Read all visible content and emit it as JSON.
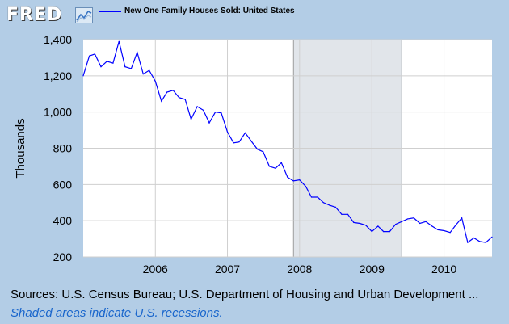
{
  "header": {
    "logo_text": "FRED",
    "logo_icon": "line-chart-icon"
  },
  "colors": {
    "background": "#b3cde6",
    "plot_background": "#ffffff",
    "series_line": "#0000ff",
    "recession_shade": "#e1e5ea",
    "note_text": "#1a66cc"
  },
  "chart_data": {
    "type": "line",
    "title": "",
    "ylabel": "Thousands",
    "xlabel": "",
    "xlim": [
      "2005-01-01",
      "2010-09-01"
    ],
    "ylim": [
      200,
      1400
    ],
    "yticks": [
      200,
      400,
      600,
      800,
      1000,
      1200,
      1400
    ],
    "ytick_labels": [
      "200",
      "400",
      "600",
      "800",
      "1,000",
      "1,200",
      "1,400"
    ],
    "xticks": [
      "2006-01-01",
      "2007-01-01",
      "2008-01-01",
      "2009-01-01",
      "2010-01-01"
    ],
    "xtick_labels": [
      "2006",
      "2007",
      "2008",
      "2009",
      "2010"
    ],
    "grid": true,
    "legend_position": "top-left",
    "recessions": [
      {
        "start": "2007-12-01",
        "end": "2009-06-01"
      }
    ],
    "series": [
      {
        "name": "New One Family Houses Sold: United States",
        "x": [
          "2005-01-01",
          "2005-02-01",
          "2005-03-01",
          "2005-04-01",
          "2005-05-01",
          "2005-06-01",
          "2005-07-01",
          "2005-08-01",
          "2005-09-01",
          "2005-10-01",
          "2005-11-01",
          "2005-12-01",
          "2006-01-01",
          "2006-02-01",
          "2006-03-01",
          "2006-04-01",
          "2006-05-01",
          "2006-06-01",
          "2006-07-01",
          "2006-08-01",
          "2006-09-01",
          "2006-10-01",
          "2006-11-01",
          "2006-12-01",
          "2007-01-01",
          "2007-02-01",
          "2007-03-01",
          "2007-04-01",
          "2007-05-01",
          "2007-06-01",
          "2007-07-01",
          "2007-08-01",
          "2007-09-01",
          "2007-10-01",
          "2007-11-01",
          "2007-12-01",
          "2008-01-01",
          "2008-02-01",
          "2008-03-01",
          "2008-04-01",
          "2008-05-01",
          "2008-06-01",
          "2008-07-01",
          "2008-08-01",
          "2008-09-01",
          "2008-10-01",
          "2008-11-01",
          "2008-12-01",
          "2009-01-01",
          "2009-02-01",
          "2009-03-01",
          "2009-04-01",
          "2009-05-01",
          "2009-06-01",
          "2009-07-01",
          "2009-08-01",
          "2009-09-01",
          "2009-10-01",
          "2009-11-01",
          "2009-12-01",
          "2010-01-01",
          "2010-02-01",
          "2010-03-01",
          "2010-04-01",
          "2010-05-01",
          "2010-06-01",
          "2010-07-01",
          "2010-08-01",
          "2010-09-01"
        ],
        "values": [
          1200,
          1310,
          1320,
          1250,
          1280,
          1270,
          1390,
          1250,
          1240,
          1330,
          1210,
          1230,
          1170,
          1060,
          1110,
          1120,
          1080,
          1070,
          960,
          1030,
          1010,
          940,
          1000,
          995,
          890,
          830,
          835,
          885,
          840,
          795,
          780,
          700,
          690,
          720,
          640,
          620,
          625,
          590,
          530,
          530,
          500,
          485,
          475,
          435,
          435,
          390,
          385,
          375,
          340,
          370,
          340,
          340,
          380,
          395,
          410,
          415,
          385,
          395,
          370,
          350,
          345,
          335,
          375,
          415,
          280,
          305,
          285,
          280,
          310
        ]
      }
    ]
  },
  "footer": {
    "sources": "Sources: U.S. Census Bureau; U.S. Department of Housing and Urban Development ...",
    "recession_note": "Shaded areas indicate U.S. recessions."
  }
}
